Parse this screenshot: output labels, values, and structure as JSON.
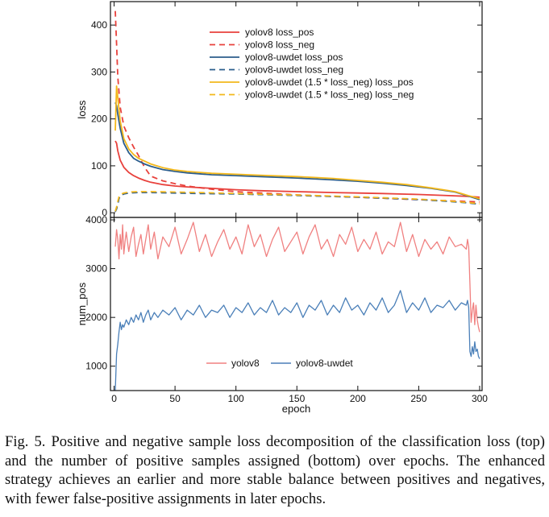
{
  "chart_data": [
    {
      "type": "line",
      "xlabel": "",
      "ylabel": "loss",
      "xlim": [
        -3,
        302
      ],
      "ylim": [
        -10,
        450
      ],
      "xticks": [
        0,
        50,
        100,
        150,
        200,
        250,
        300
      ],
      "yticks": [
        0,
        100,
        200,
        300,
        400
      ],
      "ytick_labels": [
        "0",
        "100",
        "200",
        "300",
        "400"
      ],
      "legend_position": "top-center",
      "series": [
        {
          "name": "yolov8 loss_pos",
          "color": "#e8413c",
          "dash": "solid",
          "x": [
            1,
            2,
            3,
            5,
            8,
            12,
            16,
            20,
            25,
            30,
            40,
            50,
            60,
            80,
            100,
            120,
            150,
            180,
            200,
            220,
            250,
            270,
            290,
            300
          ],
          "y": [
            153,
            148,
            132,
            112,
            97,
            86,
            79,
            74,
            69,
            65,
            60,
            57,
            55,
            52,
            49,
            47,
            45,
            43,
            42,
            41,
            39,
            37,
            35,
            33
          ]
        },
        {
          "name": "yolov8 loss_neg",
          "color": "#e8413c",
          "dash": "dashed",
          "x": [
            1,
            2,
            3,
            5,
            8,
            12,
            16,
            20,
            25,
            30,
            40,
            50,
            60,
            80,
            100,
            120,
            150,
            180,
            200,
            220,
            250,
            270,
            290,
            300
          ],
          "y": [
            430,
            360,
            290,
            225,
            185,
            160,
            140,
            122,
            97,
            78,
            68,
            62,
            57,
            50,
            45,
            42,
            38,
            35,
            33,
            31,
            28,
            26,
            24,
            23
          ]
        },
        {
          "name": "yolov8-uwdet loss_pos",
          "color": "#2b5d8c",
          "dash": "solid",
          "x": [
            1,
            2,
            3,
            5,
            8,
            12,
            16,
            20,
            25,
            30,
            40,
            50,
            60,
            80,
            100,
            120,
            150,
            180,
            200,
            220,
            240,
            260,
            280,
            290,
            300
          ],
          "y": [
            235,
            228,
            210,
            180,
            148,
            128,
            116,
            110,
            104,
            99,
            92,
            88,
            85,
            81,
            79,
            77,
            74,
            70,
            67,
            63,
            58,
            52,
            44,
            36,
            28
          ]
        },
        {
          "name": "yolov8-uwdet loss_neg",
          "color": "#2b5d8c",
          "dash": "dashed",
          "x": [
            1,
            2,
            3,
            4,
            5,
            8,
            12,
            20,
            30,
            50,
            70,
            100,
            130,
            160,
            200,
            230,
            250,
            270,
            290,
            300
          ],
          "y": [
            2,
            8,
            18,
            30,
            36,
            40,
            42,
            43,
            43,
            42,
            41,
            40,
            38,
            36,
            33,
            30,
            28,
            25,
            21,
            18
          ]
        },
        {
          "name": "yolov8-uwdet (1.5 * loss_neg) loss_pos",
          "color": "#f3b81b",
          "dash": "solid",
          "x": [
            1,
            2,
            3,
            5,
            8,
            12,
            16,
            20,
            25,
            30,
            40,
            50,
            60,
            80,
            100,
            120,
            150,
            180,
            200,
            220,
            240,
            260,
            280,
            290,
            300
          ],
          "y": [
            175,
            270,
            245,
            195,
            158,
            136,
            124,
            116,
            110,
            104,
            96,
            91,
            88,
            84,
            82,
            80,
            77,
            73,
            69,
            65,
            60,
            53,
            45,
            37,
            30
          ]
        },
        {
          "name": "yolov8-uwdet (1.5 * loss_neg) loss_neg",
          "color": "#f3b81b",
          "dash": "dashed",
          "x": [
            1,
            2,
            3,
            4,
            5,
            8,
            12,
            20,
            30,
            50,
            70,
            100,
            130,
            160,
            200,
            230,
            250,
            270,
            290,
            300
          ],
          "y": [
            3,
            12,
            24,
            34,
            39,
            42,
            44,
            45,
            45,
            44,
            43,
            41,
            39,
            37,
            34,
            31,
            29,
            26,
            22,
            19
          ]
        }
      ]
    },
    {
      "type": "line",
      "xlabel": "epoch",
      "ylabel": "num_pos",
      "xlim": [
        -3,
        302
      ],
      "ylim": [
        500,
        4050
      ],
      "xticks": [
        0,
        50,
        100,
        150,
        200,
        250,
        300
      ],
      "yticks": [
        1000,
        2000,
        3000,
        4000
      ],
      "xtick_labels": [
        "0",
        "50",
        "100",
        "150",
        "200",
        "250",
        "300"
      ],
      "ytick_labels": [
        "1000",
        "2000",
        "3000",
        "4000"
      ],
      "legend_position": "bottom-center",
      "series": [
        {
          "name": "yolov8",
          "color": "#f08080",
          "dash": "solid",
          "x": [
            1,
            2,
            3,
            4,
            5,
            6,
            7,
            8,
            9,
            10,
            12,
            14,
            16,
            18,
            20,
            22,
            24,
            26,
            28,
            30,
            33,
            36,
            40,
            45,
            50,
            55,
            60,
            65,
            70,
            75,
            80,
            85,
            90,
            95,
            100,
            105,
            110,
            115,
            120,
            125,
            130,
            135,
            140,
            145,
            150,
            155,
            160,
            165,
            170,
            175,
            180,
            185,
            190,
            195,
            200,
            205,
            210,
            215,
            220,
            225,
            230,
            235,
            240,
            245,
            250,
            255,
            260,
            265,
            270,
            275,
            280,
            285,
            289,
            290,
            291,
            292,
            293,
            294,
            295,
            296,
            297,
            298,
            299,
            300
          ],
          "y": [
            3450,
            3800,
            3600,
            3200,
            3700,
            3400,
            3900,
            3300,
            3550,
            3750,
            3350,
            3650,
            3850,
            3250,
            3500,
            3700,
            3300,
            3600,
            3900,
            3400,
            3750,
            3200,
            3650,
            3450,
            3850,
            3300,
            3600,
            3950,
            3350,
            3700,
            3250,
            3550,
            3800,
            3400,
            3650,
            3300,
            3900,
            3450,
            3700,
            3250,
            3600,
            3850,
            3350,
            3550,
            3750,
            3300,
            3650,
            3900,
            3400,
            3600,
            3250,
            3700,
            3500,
            3850,
            3350,
            3600,
            3400,
            3750,
            3300,
            3550,
            3450,
            3950,
            3350,
            3700,
            3250,
            3600,
            3400,
            3550,
            3300,
            3650,
            3450,
            3500,
            3400,
            3600,
            3450,
            2700,
            1900,
            2150,
            2300,
            1850,
            2250,
            1950,
            1800,
            1700
          ]
        },
        {
          "name": "yolov8-uwdet",
          "color": "#4a7fb8",
          "dash": "solid",
          "x": [
            1,
            2,
            3,
            4,
            5,
            6,
            7,
            8,
            10,
            12,
            14,
            16,
            18,
            20,
            22,
            24,
            26,
            28,
            30,
            33,
            36,
            40,
            45,
            50,
            55,
            60,
            65,
            70,
            75,
            80,
            85,
            90,
            95,
            100,
            105,
            110,
            115,
            120,
            125,
            130,
            135,
            140,
            145,
            150,
            155,
            160,
            165,
            170,
            175,
            180,
            185,
            190,
            195,
            200,
            205,
            210,
            215,
            220,
            225,
            230,
            235,
            240,
            245,
            250,
            255,
            260,
            265,
            270,
            275,
            280,
            285,
            289,
            290,
            291,
            292,
            293,
            294,
            295,
            296,
            297,
            298,
            299,
            300
          ],
          "y": [
            500,
            1250,
            1450,
            1700,
            1900,
            1750,
            1850,
            1800,
            1950,
            1850,
            2000,
            1900,
            2050,
            1950,
            2100,
            1900,
            2050,
            2150,
            1950,
            2100,
            2000,
            2150,
            2050,
            2200,
            1950,
            2150,
            2050,
            2250,
            2000,
            2150,
            2100,
            2250,
            2000,
            2200,
            2100,
            2300,
            2050,
            2200,
            2100,
            2350,
            2050,
            2200,
            2100,
            2300,
            2000,
            2250,
            2150,
            2350,
            2050,
            2250,
            2100,
            2400,
            2150,
            2250,
            2050,
            2300,
            2150,
            2400,
            2100,
            2250,
            2550,
            2100,
            2300,
            2150,
            2400,
            2100,
            2250,
            2200,
            2350,
            2150,
            2300,
            2250,
            2350,
            2200,
            1300,
            1200,
            1400,
            1250,
            1500,
            1300,
            1350,
            1200,
            1150
          ]
        }
      ]
    }
  ],
  "caption": {
    "label": "Fig. 5.",
    "text": "Positive and negative sample loss decomposition of the classification loss (top) and the number of positive samples assigned (bottom) over epochs. The enhanced strategy achieves an earlier and more stable balance between positives and negatives, with fewer false-positive assignments in later epochs."
  }
}
